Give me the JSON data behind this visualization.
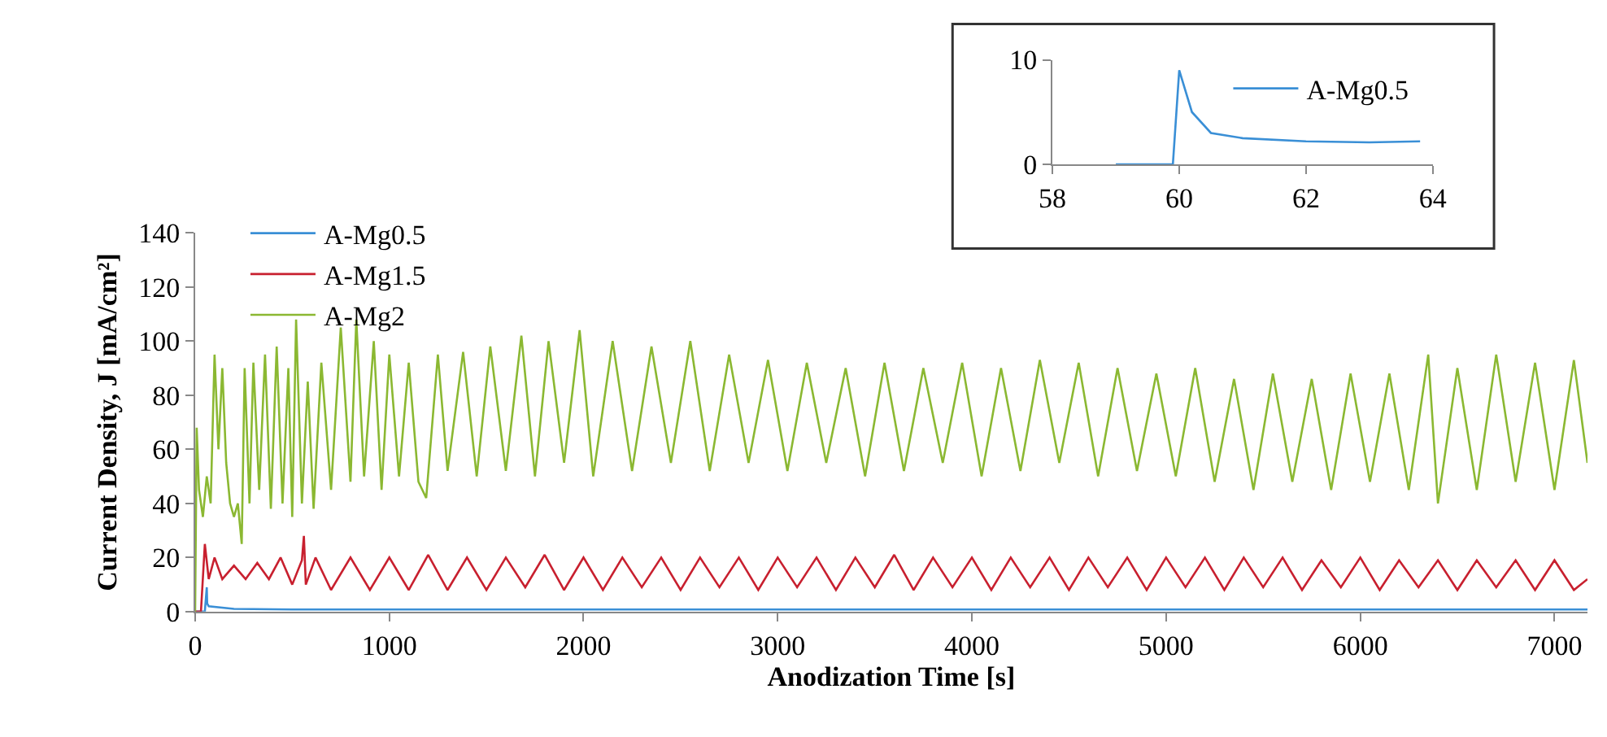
{
  "chart_data": [
    {
      "type": "line",
      "xlabel": "Anodization Time [s]",
      "ylabel": "Current Density, J [mA/cm²]",
      "xlim": [
        0,
        7170
      ],
      "ylim": [
        0,
        140
      ],
      "xticks": [
        0,
        1000,
        2000,
        3000,
        4000,
        5000,
        6000,
        7000
      ],
      "yticks": [
        0,
        20,
        40,
        60,
        80,
        100,
        120,
        140
      ],
      "grid": false,
      "legend": "top left",
      "marker": "none",
      "line_style": "solid",
      "series": [
        {
          "name": "A-Mg0.5",
          "color": "#3a8fd6",
          "x": [
            0,
            50,
            60,
            62,
            70,
            200,
            500,
            7170
          ],
          "values": [
            0,
            0,
            9,
            3,
            2,
            1,
            0.8,
            0.8
          ]
        },
        {
          "name": "A-Mg1.5",
          "color": "#c8202f",
          "x": [
            0,
            30,
            50,
            70,
            100,
            140,
            200,
            260,
            320,
            380,
            440,
            500,
            550,
            560,
            570,
            620,
            700,
            800,
            900,
            1000,
            1100,
            1200,
            1300,
            1400,
            1500,
            1600,
            1700,
            1800,
            1900,
            2000,
            2100,
            2200,
            2300,
            2400,
            2500,
            2600,
            2700,
            2800,
            2900,
            3000,
            3100,
            3200,
            3300,
            3400,
            3500,
            3600,
            3700,
            3800,
            3900,
            4000,
            4100,
            4200,
            4300,
            4400,
            4500,
            4600,
            4700,
            4800,
            4900,
            5000,
            5100,
            5200,
            5300,
            5400,
            5500,
            5600,
            5700,
            5800,
            5900,
            6000,
            6100,
            6200,
            6300,
            6400,
            6500,
            6600,
            6700,
            6800,
            6900,
            7000,
            7100,
            7170
          ],
          "values": [
            0,
            0,
            25,
            12,
            20,
            12,
            17,
            12,
            18,
            12,
            20,
            10,
            19,
            28,
            10,
            20,
            8,
            20,
            8,
            20,
            8,
            21,
            8,
            20,
            8,
            20,
            9,
            21,
            8,
            20,
            8,
            20,
            9,
            20,
            8,
            20,
            9,
            20,
            8,
            20,
            9,
            20,
            8,
            20,
            9,
            21,
            8,
            20,
            9,
            20,
            8,
            20,
            9,
            20,
            8,
            20,
            9,
            20,
            8,
            20,
            9,
            20,
            8,
            20,
            9,
            20,
            8,
            19,
            9,
            20,
            8,
            19,
            9,
            19,
            8,
            19,
            9,
            19,
            8,
            19,
            8,
            12
          ]
        },
        {
          "name": "A-Mg2",
          "color": "#8bb832",
          "x": [
            0,
            8,
            20,
            40,
            60,
            80,
            100,
            120,
            140,
            160,
            180,
            200,
            220,
            240,
            255,
            280,
            300,
            330,
            360,
            390,
            420,
            450,
            480,
            500,
            520,
            550,
            580,
            610,
            650,
            700,
            750,
            800,
            830,
            870,
            920,
            960,
            1000,
            1050,
            1100,
            1150,
            1190,
            1250,
            1300,
            1380,
            1450,
            1520,
            1600,
            1680,
            1750,
            1820,
            1900,
            1980,
            2050,
            2150,
            2250,
            2350,
            2450,
            2550,
            2650,
            2750,
            2850,
            2950,
            3050,
            3150,
            3250,
            3350,
            3450,
            3550,
            3650,
            3750,
            3850,
            3950,
            4050,
            4150,
            4250,
            4350,
            4450,
            4550,
            4650,
            4750,
            4850,
            4950,
            5050,
            5150,
            5250,
            5350,
            5450,
            5550,
            5650,
            5750,
            5850,
            5950,
            6050,
            6150,
            6250,
            6350,
            6400,
            6500,
            6600,
            6700,
            6800,
            6900,
            7000,
            7100,
            7170
          ],
          "values": [
            0,
            68,
            45,
            35,
            50,
            40,
            95,
            60,
            90,
            55,
            40,
            35,
            40,
            25,
            90,
            40,
            92,
            45,
            95,
            38,
            98,
            40,
            90,
            35,
            108,
            40,
            85,
            38,
            92,
            45,
            105,
            48,
            108,
            50,
            100,
            45,
            95,
            50,
            92,
            48,
            42,
            95,
            52,
            96,
            50,
            98,
            52,
            102,
            50,
            100,
            55,
            104,
            50,
            100,
            52,
            98,
            55,
            100,
            52,
            95,
            55,
            93,
            52,
            92,
            55,
            90,
            50,
            92,
            52,
            90,
            55,
            92,
            50,
            90,
            52,
            93,
            55,
            92,
            50,
            90,
            52,
            88,
            50,
            90,
            48,
            86,
            45,
            88,
            48,
            86,
            45,
            88,
            48,
            88,
            45,
            95,
            40,
            90,
            45,
            95,
            48,
            92,
            45,
            93,
            55
          ]
        }
      ]
    },
    {
      "type": "line",
      "xlim": [
        58,
        64
      ],
      "ylim": [
        0,
        10
      ],
      "xticks": [
        58,
        60,
        62,
        64
      ],
      "yticks": [
        0,
        10
      ],
      "grid": false,
      "legend": "top right",
      "marker": "none",
      "line_style": "solid",
      "series": [
        {
          "name": "A-Mg0.5",
          "color": "#3a8fd6",
          "x": [
            59,
            59.9,
            60,
            60.2,
            60.5,
            61,
            62,
            63,
            63.8
          ],
          "values": [
            0,
            0,
            9,
            5,
            3,
            2.5,
            2.2,
            2.1,
            2.2
          ]
        }
      ]
    }
  ]
}
